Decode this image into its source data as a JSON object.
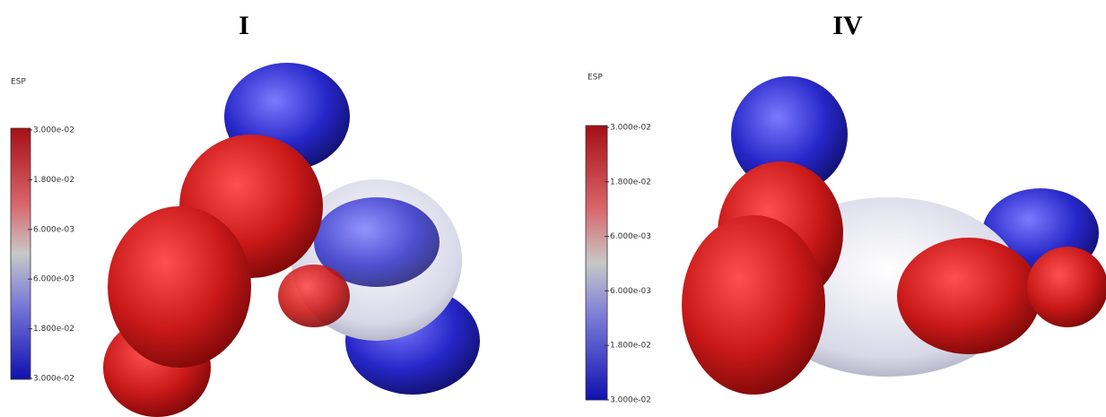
{
  "panels": [
    {
      "title": "I",
      "legend_title": "ESP",
      "legend_ticks": [
        "3.000e-02",
        "1.800e-02",
        "6.000e-03",
        "6.000e-03",
        "1.800e-02",
        "3.000e-02"
      ]
    },
    {
      "title": "IV",
      "legend_title": "ESP",
      "legend_ticks": [
        "3.000e-02",
        "1.800e-02",
        "6.000e-03",
        "6.000e-03",
        "1.800e-02",
        "3.000e-02"
      ]
    }
  ]
}
